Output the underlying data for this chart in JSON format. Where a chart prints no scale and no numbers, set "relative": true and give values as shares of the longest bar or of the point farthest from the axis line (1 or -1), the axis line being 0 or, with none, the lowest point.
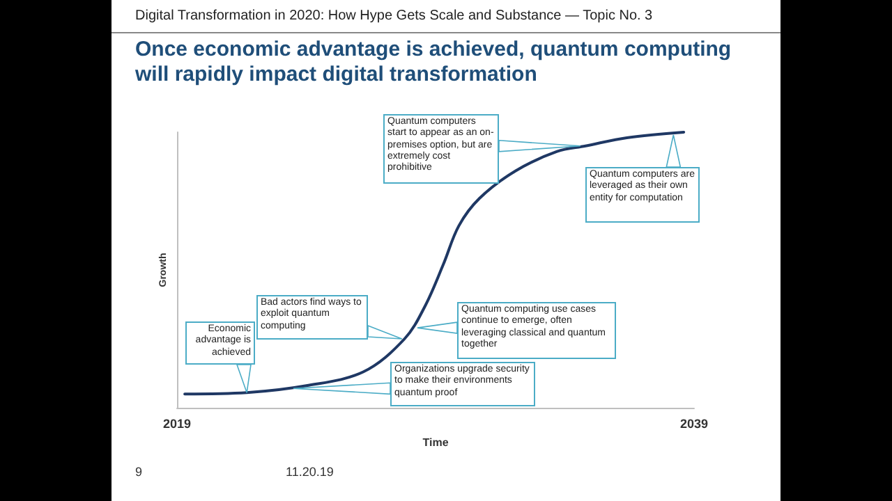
{
  "chart_data": {
    "type": "line",
    "subtitle": "Digital Transformation in 2020: How Hype Gets Scale and Substance — Topic No. 3",
    "title": "Once economic advantage is achieved, quantum computing will rapidly impact digital transformation",
    "xlabel": "Time",
    "ylabel": "Growth",
    "relative": true,
    "xlim": [
      2019,
      2039
    ],
    "xticks": [
      2019,
      2039
    ],
    "x": [
      2019.3,
      2021.7,
      2024.0,
      2026.2,
      2027.8,
      2028.6,
      2029.3,
      2029.9,
      2030.7,
      2032.1,
      2033.7,
      2034.8,
      2036.4,
      2038.6
    ],
    "series": [
      {
        "color": "#1f3864",
        "values": [
          0.05,
          0.055,
          0.08,
          0.13,
          0.25,
          0.37,
          0.52,
          0.66,
          0.76,
          0.86,
          0.93,
          0.95,
          0.98,
          1
        ]
      }
    ],
    "marker": "none",
    "line_style": "solid",
    "annotations": [
      {
        "text": "Economic advantage is achieved",
        "x": 2021.7,
        "y": 0.055
      },
      {
        "text": "Bad actors find ways to exploit quantum computing",
        "x": 2027.7,
        "y": 0.25
      },
      {
        "text": "Organizations upgrade security to make their environments quantum proof",
        "x": 2023.5,
        "y": 0.07
      },
      {
        "text": "Quantum computing use cases continue to emerge, often leveraging classical and quantum together",
        "x": 2028.3,
        "y": 0.29
      },
      {
        "text": "Quantum computers start to appear as an on-premises option, but are extremely cost prohibitive",
        "x": 2034.6,
        "y": 0.95
      },
      {
        "text": "Quantum computers are leveraged as their own entity for computation",
        "x": 2038.2,
        "y": 0.99
      },
      "9",
      "11.20.19"
    ]
  }
}
